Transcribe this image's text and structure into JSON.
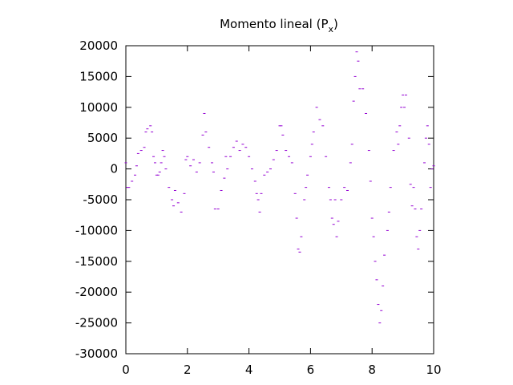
{
  "chart_data": {
    "type": "scatter",
    "title": [
      "Momento lineal (P",
      "x",
      ")"
    ],
    "xlim": [
      0,
      10
    ],
    "ylim": [
      -30000,
      20000
    ],
    "xticks": [
      0,
      2,
      4,
      6,
      8,
      10
    ],
    "yticks": [
      -30000,
      -25000,
      -20000,
      -15000,
      -10000,
      -5000,
      0,
      5000,
      10000,
      15000,
      20000
    ],
    "grid": false,
    "series": [
      {
        "color": "#9400d3",
        "x": [
          0,
          0.05,
          0.1,
          0.2,
          0.3,
          0.35,
          0.4,
          0.5,
          0.6,
          0.65,
          0.7,
          0.8,
          0.85,
          0.9,
          0.95,
          1.0,
          1.05,
          1.1,
          1.15,
          1.2,
          1.25,
          1.3,
          1.4,
          1.5,
          1.55,
          1.6,
          1.7,
          1.8,
          1.9,
          1.95,
          2.0,
          2.1,
          2.2,
          2.3,
          2.4,
          2.5,
          2.55,
          2.6,
          2.7,
          2.8,
          2.85,
          2.9,
          3.0,
          3.1,
          3.2,
          3.25,
          3.3,
          3.4,
          3.5,
          3.6,
          3.7,
          3.8,
          3.9,
          4.0,
          4.1,
          4.2,
          4.25,
          4.3,
          4.35,
          4.4,
          4.5,
          4.6,
          4.7,
          4.8,
          4.9,
          5.0,
          5.05,
          5.1,
          5.2,
          5.3,
          5.4,
          5.5,
          5.55,
          5.6,
          5.65,
          5.7,
          5.8,
          5.85,
          5.9,
          6.0,
          6.05,
          6.1,
          6.2,
          6.3,
          6.4,
          6.5,
          6.6,
          6.65,
          6.7,
          6.75,
          6.8,
          6.85,
          6.9,
          7.0,
          7.1,
          7.2,
          7.3,
          7.35,
          7.4,
          7.45,
          7.5,
          7.55,
          7.6,
          7.7,
          7.8,
          7.9,
          7.95,
          8.0,
          8.05,
          8.1,
          8.15,
          8.2,
          8.25,
          8.3,
          8.35,
          8.4,
          8.5,
          8.55,
          8.6,
          8.7,
          8.8,
          8.85,
          8.9,
          8.95,
          9.0,
          9.05,
          9.1,
          9.2,
          9.25,
          9.3,
          9.35,
          9.4,
          9.45,
          9.5,
          9.55,
          9.6,
          9.7,
          9.75,
          9.8,
          9.85,
          9.9,
          9.95,
          10.0
        ],
        "values": [
          1000,
          -3000,
          -3000,
          -2000,
          -1000,
          500,
          2500,
          3000,
          3500,
          6000,
          6500,
          7000,
          6000,
          2000,
          1000,
          -1000,
          -1000,
          -500,
          1000,
          3000,
          2000,
          0,
          -3000,
          -5000,
          -6000,
          -3500,
          -5500,
          -7000,
          -4000,
          1500,
          2000,
          500,
          1500,
          -500,
          1000,
          5500,
          9000,
          6000,
          3500,
          1000,
          -500,
          -6500,
          -6500,
          -3500,
          -1500,
          2000,
          0,
          2000,
          3500,
          4500,
          3000,
          4000,
          3500,
          2000,
          0,
          -2000,
          -4000,
          -5000,
          -7000,
          -4000,
          -1000,
          -500,
          0,
          1500,
          3000,
          7000,
          7000,
          5500,
          3000,
          2000,
          1000,
          -4000,
          -8000,
          -13000,
          -13500,
          -11000,
          -5000,
          -3000,
          -1000,
          2000,
          4000,
          6000,
          10000,
          8000,
          7000,
          2000,
          -3000,
          -5000,
          -8000,
          -9000,
          -5000,
          -11000,
          -8500,
          -5000,
          -3000,
          -3500,
          1000,
          4000,
          11000,
          15000,
          19000,
          17500,
          13000,
          13000,
          9000,
          3000,
          -2000,
          -8000,
          -11000,
          -15000,
          -18000,
          -22000,
          -25000,
          -23000,
          -19000,
          -14000,
          -10000,
          -7000,
          -3000,
          3000,
          6000,
          4000,
          7000,
          10000,
          12000,
          10000,
          12000,
          5000,
          -2500,
          -6000,
          -3000,
          -6500,
          -11000,
          -13000,
          -10000,
          -6500,
          1000,
          5000,
          7000,
          4000,
          -3000,
          0,
          500
        ]
      }
    ]
  }
}
